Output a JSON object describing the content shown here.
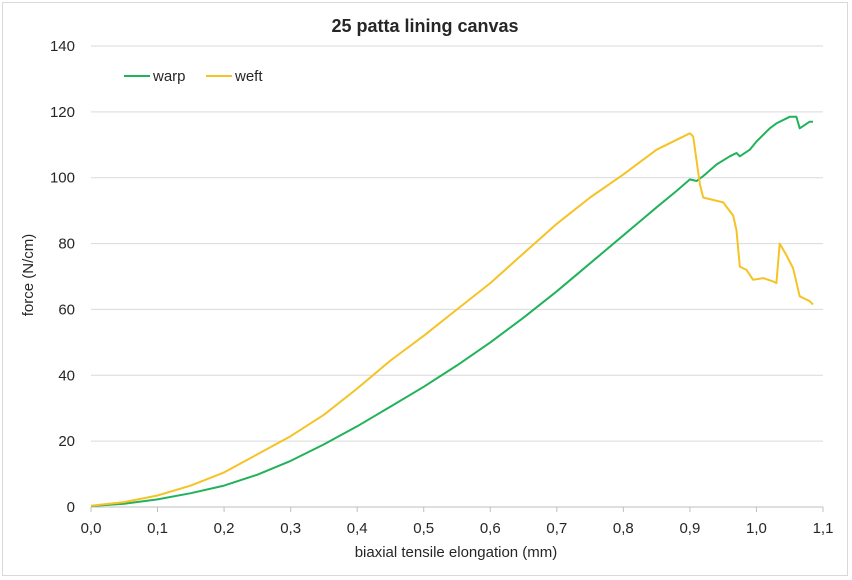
{
  "chart_data": {
    "type": "line",
    "title": "25 patta lining canvas",
    "xlabel": "biaxial tensile elongation (mm)",
    "ylabel": "force (N/cm)",
    "xlim": [
      0,
      1.1
    ],
    "ylim": [
      0,
      140
    ],
    "x_ticks": [
      "0,0",
      "0,1",
      "0,2",
      "0,3",
      "0,4",
      "0,5",
      "0,6",
      "0,7",
      "0,8",
      "0,9",
      "1,0",
      "1,1"
    ],
    "y_ticks": [
      "0",
      "20",
      "40",
      "60",
      "80",
      "100",
      "120",
      "140"
    ],
    "grid": "horizontal",
    "legend_position": "top-left",
    "series": [
      {
        "name": "warp",
        "color": "#21b25a",
        "points": [
          [
            0,
            0.3
          ],
          [
            0.05,
            1.0
          ],
          [
            0.1,
            2.3
          ],
          [
            0.15,
            4.2
          ],
          [
            0.2,
            6.5
          ],
          [
            0.25,
            9.8
          ],
          [
            0.3,
            14.0
          ],
          [
            0.35,
            19.0
          ],
          [
            0.4,
            24.5
          ],
          [
            0.45,
            30.5
          ],
          [
            0.5,
            36.5
          ],
          [
            0.55,
            43.0
          ],
          [
            0.6,
            50.0
          ],
          [
            0.65,
            57.5
          ],
          [
            0.7,
            65.5
          ],
          [
            0.75,
            74.0
          ],
          [
            0.8,
            82.5
          ],
          [
            0.85,
            91.0
          ],
          [
            0.88,
            96.0
          ],
          [
            0.9,
            99.5
          ],
          [
            0.91,
            99.0
          ],
          [
            0.92,
            100.5
          ],
          [
            0.94,
            104.0
          ],
          [
            0.96,
            106.5
          ],
          [
            0.97,
            107.5
          ],
          [
            0.975,
            106.5
          ],
          [
            0.99,
            108.5
          ],
          [
            1.0,
            111.0
          ],
          [
            1.02,
            115.0
          ],
          [
            1.03,
            116.5
          ],
          [
            1.05,
            118.5
          ],
          [
            1.06,
            118.5
          ],
          [
            1.065,
            115.0
          ],
          [
            1.08,
            117.0
          ],
          [
            1.085,
            117.0
          ]
        ]
      },
      {
        "name": "weft",
        "color": "#f5c325",
        "points": [
          [
            0,
            0.4
          ],
          [
            0.05,
            1.5
          ],
          [
            0.1,
            3.5
          ],
          [
            0.15,
            6.5
          ],
          [
            0.2,
            10.5
          ],
          [
            0.25,
            16.0
          ],
          [
            0.3,
            21.5
          ],
          [
            0.35,
            28.0
          ],
          [
            0.4,
            36.0
          ],
          [
            0.45,
            44.5
          ],
          [
            0.5,
            52.0
          ],
          [
            0.55,
            60.0
          ],
          [
            0.6,
            68.0
          ],
          [
            0.65,
            77.0
          ],
          [
            0.7,
            86.0
          ],
          [
            0.75,
            94.0
          ],
          [
            0.8,
            101.0
          ],
          [
            0.85,
            108.5
          ],
          [
            0.88,
            111.5
          ],
          [
            0.9,
            113.5
          ],
          [
            0.905,
            112.5
          ],
          [
            0.915,
            98.0
          ],
          [
            0.92,
            94.0
          ],
          [
            0.95,
            92.5
          ],
          [
            0.965,
            88.5
          ],
          [
            0.97,
            84.0
          ],
          [
            0.975,
            73.0
          ],
          [
            0.985,
            72.0
          ],
          [
            0.995,
            69.0
          ],
          [
            1.01,
            69.5
          ],
          [
            1.025,
            68.5
          ],
          [
            1.03,
            68.0
          ],
          [
            1.035,
            80.0
          ],
          [
            1.045,
            76.5
          ],
          [
            1.055,
            72.5
          ],
          [
            1.065,
            64.0
          ],
          [
            1.075,
            63.0
          ],
          [
            1.08,
            62.5
          ],
          [
            1.085,
            61.5
          ]
        ]
      }
    ]
  }
}
